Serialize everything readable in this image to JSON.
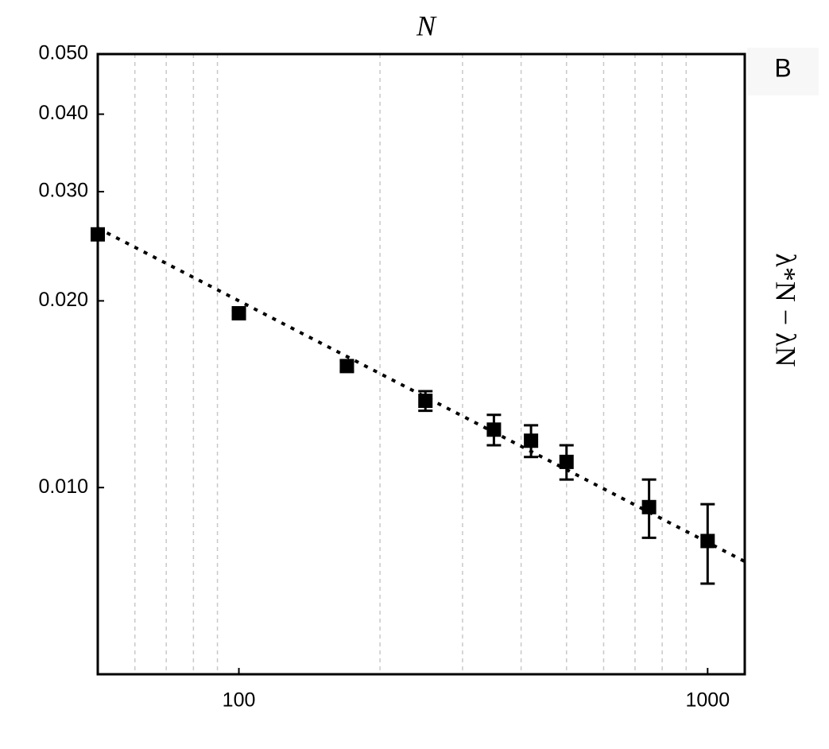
{
  "chart_data": {
    "type": "scatter",
    "title": "N",
    "ylabel": "λ*N − λN",
    "panel_label": "B",
    "xscale": "log",
    "yscale": "log",
    "xlim": [
      50,
      1200
    ],
    "ylim": [
      0.005,
      0.05
    ],
    "xticks": [
      100,
      1000
    ],
    "x_minor_grid": [
      60,
      70,
      80,
      90,
      200,
      300,
      400,
      500,
      600,
      700,
      800,
      900
    ],
    "yticks": [
      {
        "value": 0.01,
        "label": "0.010"
      },
      {
        "value": 0.02,
        "label": "0.020"
      },
      {
        "value": 0.03,
        "label": "0.030"
      },
      {
        "value": 0.04,
        "label": "0.040"
      },
      {
        "value": 0.05,
        "label": "0.050"
      }
    ],
    "color": "#000000",
    "x": [
      50,
      100,
      170,
      250,
      350,
      420,
      500,
      750,
      1000
    ],
    "values": [
      0.0256,
      0.0191,
      0.0157,
      0.0138,
      0.0124,
      0.0119,
      0.011,
      0.0093,
      0.0082
    ],
    "errors": [
      0.0002,
      0.0002,
      0.0003,
      0.0005,
      0.0007,
      0.0007,
      0.0007,
      0.001,
      0.0012
    ],
    "fit": {
      "x": [
        50,
        1200
      ],
      "values": [
        0.0262,
        0.0076
      ]
    }
  }
}
